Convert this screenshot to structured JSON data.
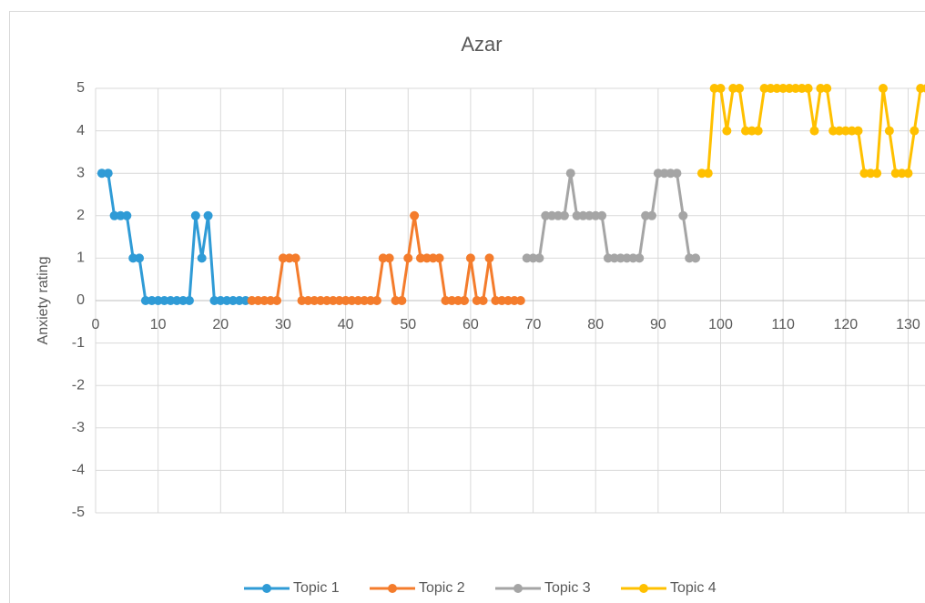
{
  "chart_data": {
    "type": "line",
    "title": "Azar",
    "y_label": "Anxiety rating",
    "xlim": [
      0,
      132.7
    ],
    "ylim": [
      -5,
      5
    ],
    "xticks": [
      0,
      10,
      20,
      30,
      40,
      50,
      60,
      70,
      80,
      90,
      100,
      110,
      120,
      130
    ],
    "yticks": [
      -5,
      -4,
      -3,
      -2,
      -1,
      0,
      1,
      2,
      3,
      4,
      5
    ],
    "grid": true,
    "legend": "bottom",
    "series": [
      {
        "name": "Topic 1",
        "color": "#2f9bd6",
        "x": [
          1,
          2,
          3,
          4,
          5,
          6,
          7,
          8,
          9,
          10,
          11,
          12,
          13,
          14,
          15,
          16,
          17,
          18,
          19,
          20,
          21,
          22,
          23,
          24
        ],
        "values": [
          3,
          3,
          2,
          2,
          2,
          1,
          1,
          0,
          0,
          0,
          0,
          0,
          0,
          0,
          0,
          2,
          1,
          2,
          0,
          0,
          0,
          0,
          0,
          0
        ]
      },
      {
        "name": "Topic 2",
        "color": "#f47c2c",
        "x": [
          25,
          26,
          27,
          28,
          29,
          30,
          31,
          32,
          33,
          34,
          35,
          36,
          37,
          38,
          39,
          40,
          41,
          42,
          43,
          44,
          45,
          46,
          47,
          48,
          49,
          50,
          51,
          52,
          53,
          54,
          55,
          56,
          57,
          58,
          59,
          60,
          61,
          62,
          63,
          64,
          65,
          66,
          67,
          68
        ],
        "values": [
          0,
          0,
          0,
          0,
          0,
          1,
          1,
          1,
          0,
          0,
          0,
          0,
          0,
          0,
          0,
          0,
          0,
          0,
          0,
          0,
          0,
          1,
          1,
          0,
          0,
          1,
          2,
          1,
          1,
          1,
          1,
          0,
          0,
          0,
          0,
          1,
          0,
          0,
          1,
          0,
          0,
          0,
          0,
          0
        ]
      },
      {
        "name": "Topic 3",
        "color": "#a5a5a5",
        "x": [
          69,
          70,
          71,
          72,
          73,
          74,
          75,
          76,
          77,
          78,
          79,
          80,
          81,
          82,
          83,
          84,
          85,
          86,
          87,
          88,
          89,
          90,
          91,
          92,
          93,
          94,
          95,
          96
        ],
        "values": [
          1,
          1,
          1,
          2,
          2,
          2,
          2,
          3,
          2,
          2,
          2,
          2,
          2,
          1,
          1,
          1,
          1,
          1,
          1,
          2,
          2,
          3,
          3,
          3,
          3,
          2,
          1,
          1
        ]
      },
      {
        "name": "Topic 4",
        "color": "#ffc000",
        "x": [
          97,
          98,
          99,
          100,
          101,
          102,
          103,
          104,
          105,
          106,
          107,
          108,
          109,
          110,
          111,
          112,
          113,
          114,
          115,
          116,
          117,
          118,
          119,
          120,
          121,
          122,
          123,
          124,
          125,
          126,
          127,
          128,
          129,
          130,
          131,
          132,
          133
        ],
        "values": [
          3,
          3,
          5,
          5,
          4,
          5,
          5,
          4,
          4,
          4,
          5,
          5,
          5,
          5,
          5,
          5,
          5,
          5,
          4,
          5,
          5,
          4,
          4,
          4,
          4,
          4,
          3,
          3,
          3,
          5,
          4,
          3,
          3,
          3,
          4,
          5,
          5
        ]
      }
    ]
  }
}
